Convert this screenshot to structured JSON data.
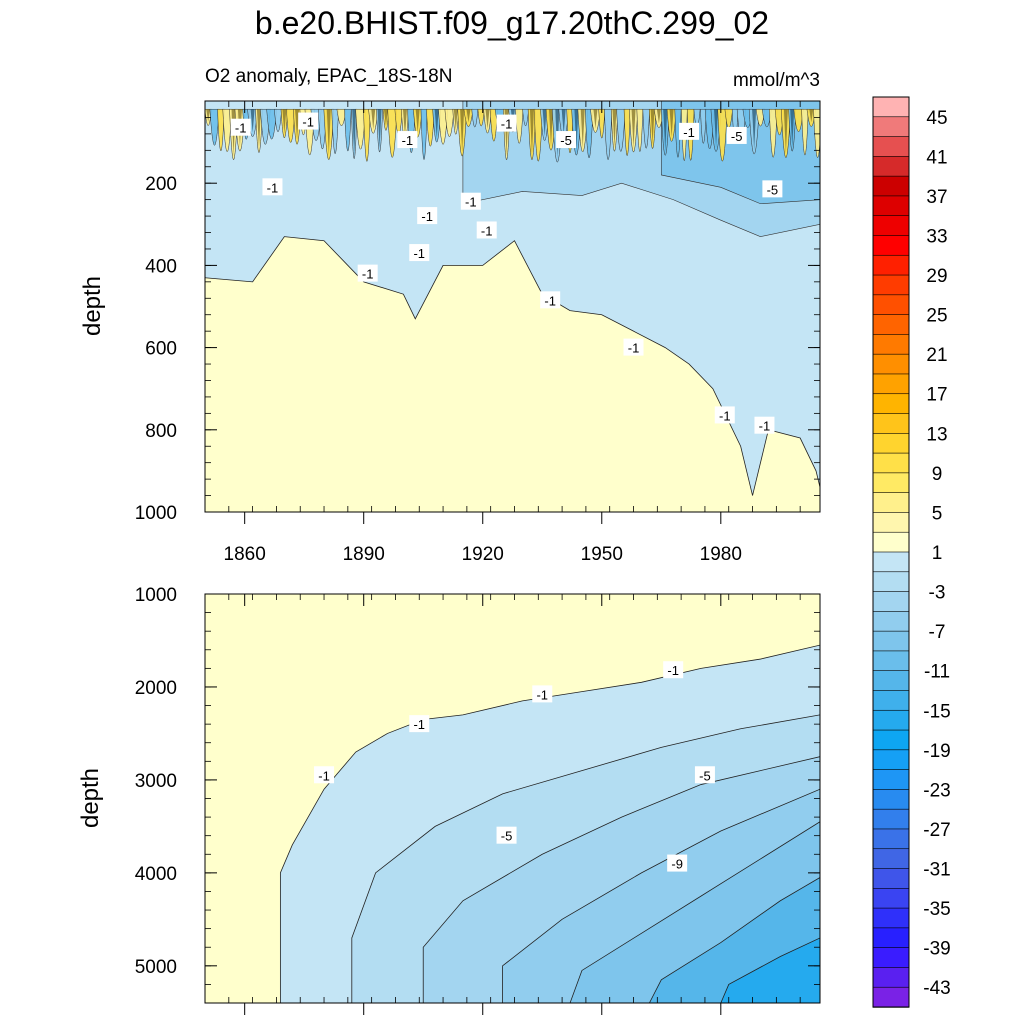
{
  "chart_data": {
    "type": "contour",
    "title": "b.e20.BHIST.f09_g17.20thC.299_02",
    "subtitle_left": "O2 anomaly, EPAC_18S-18N",
    "units": "mmol/m^3",
    "xaxis": {
      "range": [
        1850,
        2005
      ],
      "ticks": [
        1860,
        1890,
        1920,
        1950,
        1980
      ],
      "tick_labels": [
        "1860",
        "1890",
        "1920",
        "1950",
        "1980"
      ]
    },
    "panels": [
      {
        "name": "upper",
        "ylabel": "depth",
        "yrange": [
          0,
          1000
        ],
        "yticks": [
          200,
          400,
          600,
          800,
          1000
        ],
        "ytick_labels": [
          "200",
          "400",
          "600",
          "800",
          "1000"
        ],
        "minus1_front": [
          [
            1850,
            430
          ],
          [
            1862,
            440
          ],
          [
            1870,
            330
          ],
          [
            1880,
            340
          ],
          [
            1890,
            440
          ],
          [
            1900,
            470
          ],
          [
            1903,
            530
          ],
          [
            1910,
            400
          ],
          [
            1920,
            400
          ],
          [
            1928,
            340
          ],
          [
            1935,
            470
          ],
          [
            1942,
            510
          ],
          [
            1950,
            520
          ],
          [
            1958,
            560
          ],
          [
            1966,
            600
          ],
          [
            1972,
            640
          ],
          [
            1978,
            700
          ],
          [
            1985,
            840
          ],
          [
            1988,
            960
          ],
          [
            1992,
            800
          ],
          [
            2000,
            820
          ],
          [
            2004,
            900
          ],
          [
            2005,
            940
          ]
        ],
        "minus3_front": [
          [
            1915,
            250
          ],
          [
            1930,
            220
          ],
          [
            1945,
            230
          ],
          [
            1955,
            200
          ],
          [
            1968,
            240
          ],
          [
            1980,
            290
          ],
          [
            1990,
            330
          ],
          [
            2005,
            300
          ]
        ],
        "minus5_front": [
          [
            1965,
            180
          ],
          [
            1980,
            210
          ],
          [
            1990,
            250
          ],
          [
            2005,
            240
          ]
        ],
        "contour_labels": [
          {
            "text": "-1",
            "x": 1859,
            "y": 65
          },
          {
            "text": "-1",
            "x": 1867,
            "y": 210
          },
          {
            "text": "-1",
            "x": 1876,
            "y": 50
          },
          {
            "text": "-1",
            "x": 1891,
            "y": 420
          },
          {
            "text": "-1",
            "x": 1901,
            "y": 95
          },
          {
            "text": "-1",
            "x": 1906,
            "y": 280
          },
          {
            "text": "-1",
            "x": 1904,
            "y": 370
          },
          {
            "text": "-1",
            "x": 1917,
            "y": 245
          },
          {
            "text": "-1",
            "x": 1921,
            "y": 315
          },
          {
            "text": "-1",
            "x": 1926,
            "y": 55
          },
          {
            "text": "-5",
            "x": 1941,
            "y": 95
          },
          {
            "text": "-1",
            "x": 1937,
            "y": 485
          },
          {
            "text": "-1",
            "x": 1958,
            "y": 600
          },
          {
            "text": "-1",
            "x": 1972,
            "y": 75
          },
          {
            "text": "-5",
            "x": 1984,
            "y": 85
          },
          {
            "text": "-5",
            "x": 1993,
            "y": 215
          },
          {
            "text": "-1",
            "x": 1981,
            "y": 765
          },
          {
            "text": "-1",
            "x": 1991,
            "y": 790
          }
        ]
      },
      {
        "name": "lower",
        "ylabel": "depth",
        "yrange": [
          1000,
          5400
        ],
        "yticks": [
          1000,
          2000,
          3000,
          4000,
          5000
        ],
        "ytick_labels": [
          "1000",
          "2000",
          "3000",
          "4000",
          "5000"
        ],
        "levels": [
          {
            "level": -1,
            "points": [
              [
                1869,
                5400
              ],
              [
                1869,
                4000
              ],
              [
                1872,
                3700
              ],
              [
                1880,
                3100
              ],
              [
                1888,
                2700
              ],
              [
                1896,
                2500
              ],
              [
                1905,
                2350
              ],
              [
                1915,
                2300
              ],
              [
                1930,
                2150
              ],
              [
                1945,
                2050
              ],
              [
                1960,
                1950
              ],
              [
                1975,
                1800
              ],
              [
                1990,
                1700
              ],
              [
                2005,
                1550
              ]
            ]
          },
          {
            "level": -3,
            "points": [
              [
                1887,
                5400
              ],
              [
                1887,
                4700
              ],
              [
                1893,
                4000
              ],
              [
                1908,
                3500
              ],
              [
                1925,
                3150
              ],
              [
                1945,
                2900
              ],
              [
                1965,
                2650
              ],
              [
                1985,
                2450
              ],
              [
                2005,
                2300
              ]
            ]
          },
          {
            "level": -5,
            "points": [
              [
                1905,
                5400
              ],
              [
                1905,
                4800
              ],
              [
                1915,
                4300
              ],
              [
                1935,
                3800
              ],
              [
                1955,
                3400
              ],
              [
                1975,
                3050
              ],
              [
                1990,
                2900
              ],
              [
                2005,
                2750
              ]
            ]
          },
          {
            "level": -7,
            "points": [
              [
                1925,
                5400
              ],
              [
                1925,
                5000
              ],
              [
                1940,
                4500
              ],
              [
                1960,
                4000
              ],
              [
                1980,
                3550
              ],
              [
                2005,
                3100
              ]
            ]
          },
          {
            "level": -9,
            "points": [
              [
                1942,
                5400
              ],
              [
                1945,
                5050
              ],
              [
                1960,
                4650
              ],
              [
                1975,
                4250
              ],
              [
                1990,
                3850
              ],
              [
                2005,
                3450
              ]
            ]
          },
          {
            "level": -11,
            "points": [
              [
                1962,
                5400
              ],
              [
                1965,
                5150
              ],
              [
                1980,
                4750
              ],
              [
                1995,
                4300
              ],
              [
                2005,
                4050
              ]
            ]
          },
          {
            "level": -13,
            "points": [
              [
                1980,
                5400
              ],
              [
                1982,
                5200
              ],
              [
                1995,
                4900
              ],
              [
                2005,
                4700
              ]
            ]
          }
        ],
        "contour_labels": [
          {
            "text": "-1",
            "x": 1880,
            "y": 2950
          },
          {
            "text": "-1",
            "x": 1904,
            "y": 2400
          },
          {
            "text": "-1",
            "x": 1935,
            "y": 2080
          },
          {
            "text": "-1",
            "x": 1968,
            "y": 1820
          },
          {
            "text": "-5",
            "x": 1976,
            "y": 2950
          },
          {
            "text": "-5",
            "x": 1926,
            "y": 3600
          },
          {
            "text": "-9",
            "x": 1969,
            "y": 3900
          }
        ]
      }
    ],
    "colorbar": {
      "tick_labels": [
        "45",
        "41",
        "37",
        "33",
        "29",
        "25",
        "21",
        "17",
        "13",
        "9",
        "5",
        "1",
        "-3",
        "-7",
        "-11",
        "-15",
        "-19",
        "-23",
        "-27",
        "-31",
        "-35",
        "-39",
        "-43"
      ],
      "colors": [
        "#ffb3b3",
        "#f07a7a",
        "#e65050",
        "#d62a2a",
        "#cc0000",
        "#dd0000",
        "#ee0000",
        "#ff0000",
        "#ff2000",
        "#ff3c00",
        "#ff5000",
        "#ff6400",
        "#ff7a00",
        "#ff8f00",
        "#ffa200",
        "#ffb400",
        "#ffc41a",
        "#ffd42e",
        "#ffe048",
        "#ffea64",
        "#fff08c",
        "#fff6ae",
        "#ffffcc",
        "#c4e5f5",
        "#b3ddf2",
        "#a3d5f0",
        "#91cdee",
        "#7ec5ec",
        "#6abeeb",
        "#55b6ea",
        "#3fb0ec",
        "#25aaee",
        "#0ea6f2",
        "#15a0f5",
        "#1e96f5",
        "#288bf0",
        "#327fec",
        "#3a72e8",
        "#4066e5",
        "#3f55ea",
        "#3a44f2",
        "#2f30fa",
        "#2820ff",
        "#3a1cff",
        "#5a20f0",
        "#7a22e6"
      ]
    }
  }
}
